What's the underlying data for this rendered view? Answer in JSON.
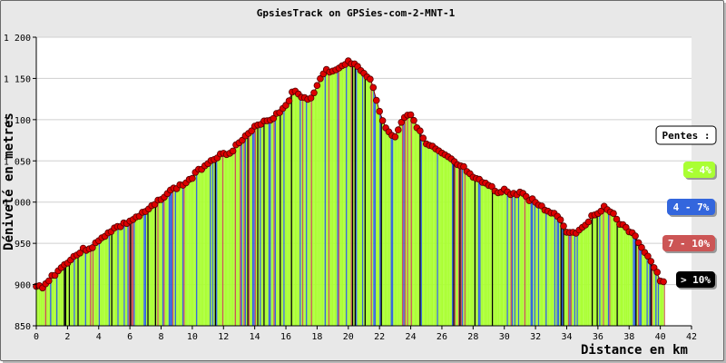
{
  "chart_data": {
    "type": "area",
    "title": "GpsiesTrack on GPSies-com-2-MNT-1",
    "xlabel": "Distance en km",
    "ylabel": "Dénivelé en metres",
    "xlim": [
      0,
      42
    ],
    "ylim": [
      850,
      1200
    ],
    "x_ticks": [
      "0",
      "2",
      "4",
      "6",
      "8",
      "10",
      "12",
      "14",
      "16",
      "18",
      "20",
      "22",
      "24",
      "26",
      "28",
      "30",
      "32",
      "34",
      "36",
      "38",
      "40",
      "42"
    ],
    "y_ticks": [
      "850",
      "900",
      "950",
      "1 000",
      "1 050",
      "1 100",
      "1 150",
      "1 200"
    ],
    "grid": true,
    "legend_position": "right",
    "legend_title": "Pentes :",
    "legend": [
      {
        "label": "< 4%",
        "color": "#aaff33",
        "text_color": "#ffffff"
      },
      {
        "label": "4 - 7%",
        "color": "#3366dd",
        "text_color": "#ffffff"
      },
      {
        "label": "7 - 10%",
        "color": "#cc5555",
        "text_color": "#ffffff"
      },
      {
        "label": "> 10%",
        "color": "#000000",
        "text_color": "#ffffff"
      }
    ],
    "colors": {
      "lt4": "#aaff33",
      "p4_7": "#3366dd",
      "p7_10": "#cc5555",
      "gt10": "#000000",
      "marker": "#dd0000",
      "marker_edge": "#550000",
      "grid": "#cfcfcf"
    },
    "series": [
      {
        "x": [
          0,
          0.5,
          1,
          1.5,
          2,
          2.5,
          3,
          3.5,
          4,
          4.5,
          5,
          5.5,
          6,
          6.5,
          7,
          7.5,
          8,
          8.5,
          9,
          9.5,
          10,
          10.5,
          11,
          11.5,
          12,
          12.5,
          13,
          13.5,
          14,
          14.5,
          15,
          15.5,
          16,
          16.5,
          17,
          17.5,
          18,
          18.5,
          19,
          19.5,
          20,
          20.3,
          20.7,
          21,
          21.5,
          22,
          22.5,
          23,
          23.5,
          24,
          24.5,
          25,
          25.5,
          26,
          26.5,
          27,
          27.5,
          28,
          28.5,
          29,
          29.5,
          30,
          30.5,
          31,
          31.5,
          32,
          32.5,
          33,
          33.5,
          34,
          34.5,
          35,
          35.5,
          36,
          36.5,
          37,
          37.5,
          38,
          38.5,
          39,
          39.5,
          40,
          40.3
        ],
        "y": [
          897,
          898,
          910,
          918,
          928,
          935,
          942,
          945,
          952,
          962,
          968,
          972,
          977,
          982,
          988,
          995,
          1005,
          1012,
          1018,
          1022,
          1030,
          1040,
          1048,
          1055,
          1058,
          1062,
          1072,
          1080,
          1090,
          1098,
          1100,
          1108,
          1118,
          1135,
          1128,
          1125,
          1140,
          1160,
          1158,
          1162,
          1173,
          1168,
          1162,
          1158,
          1145,
          1110,
          1085,
          1080,
          1102,
          1108,
          1088,
          1070,
          1065,
          1058,
          1052,
          1045,
          1040,
          1028,
          1025,
          1020,
          1012,
          1015,
          1008,
          1012,
          1005,
          1000,
          992,
          988,
          982,
          965,
          962,
          970,
          980,
          988,
          995,
          985,
          972,
          965,
          955,
          940,
          925,
          905,
          900
        ]
      }
    ]
  }
}
